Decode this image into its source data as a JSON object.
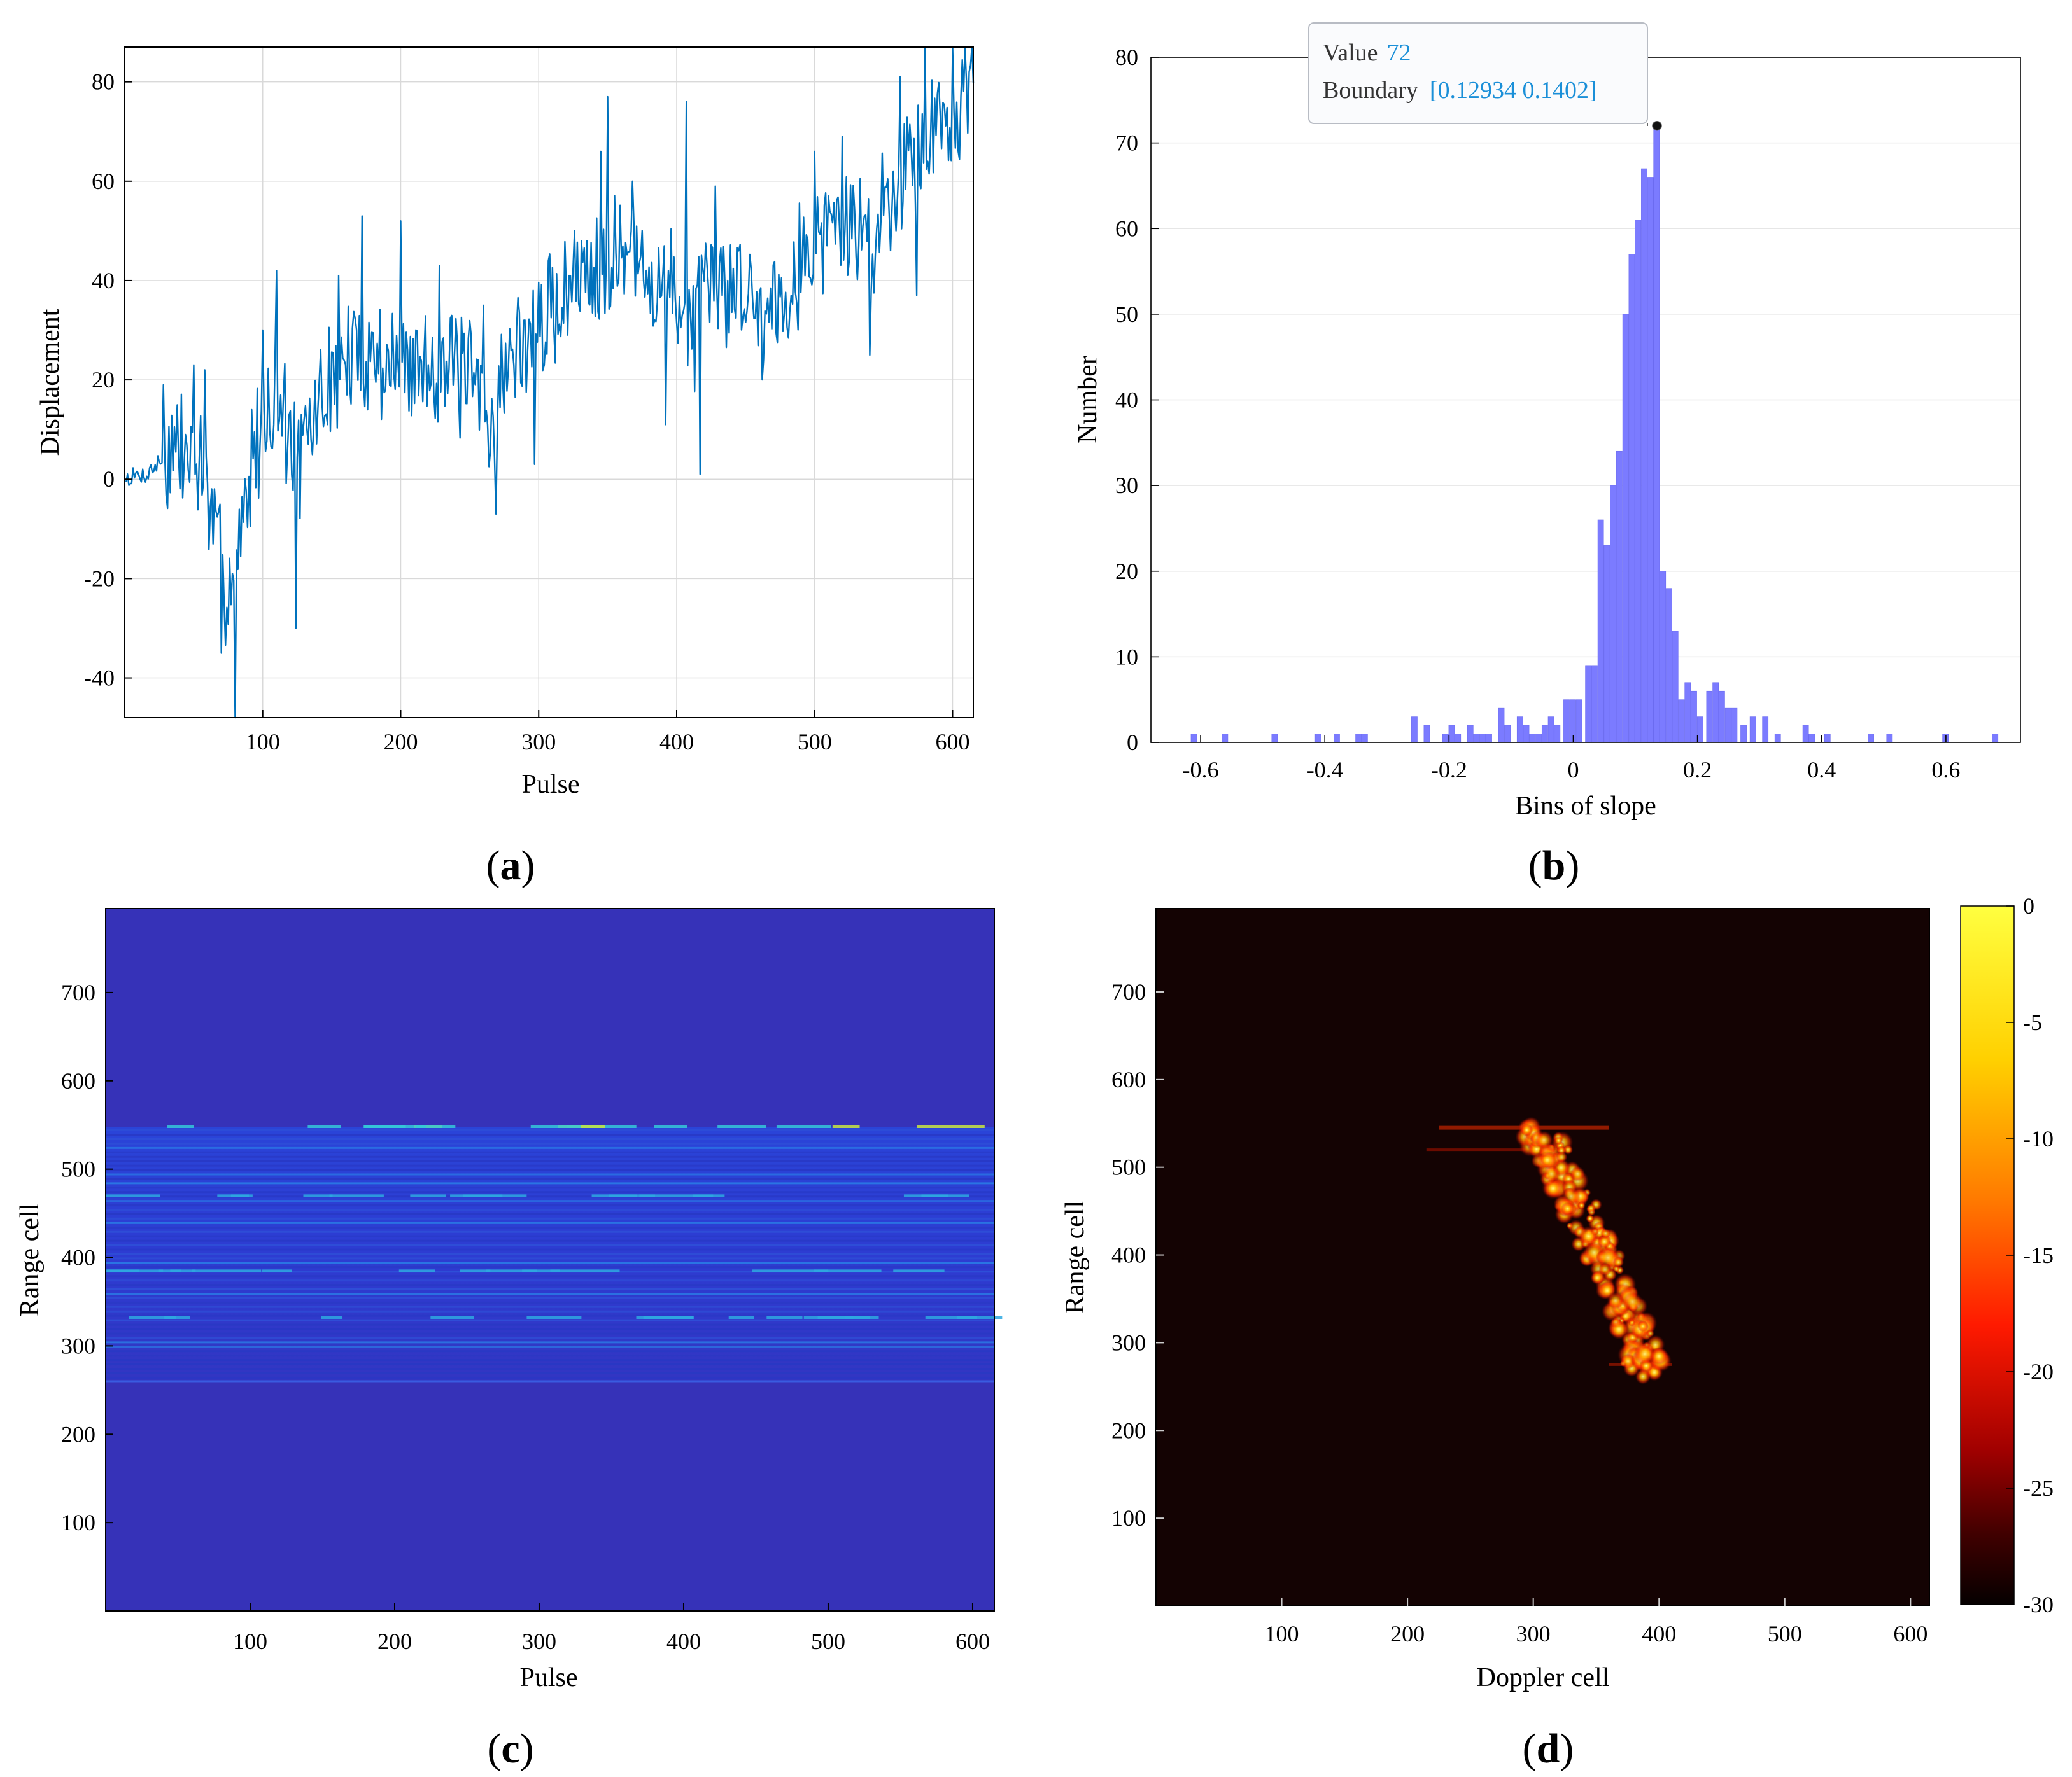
{
  "figure_labels": {
    "a": "a",
    "b": "b",
    "c": "c",
    "d": "d"
  },
  "chart_data": [
    {
      "panel": "a",
      "type": "line",
      "xlabel": "Pulse",
      "ylabel": "Displacement",
      "xlim": [
        0,
        615
      ],
      "ylim": [
        -48,
        87
      ],
      "xticks": [
        100,
        200,
        300,
        400,
        500,
        600
      ],
      "yticks": [
        -40,
        -20,
        0,
        20,
        40,
        60,
        80
      ],
      "grid": true,
      "line_color": "#0072bd",
      "trend_anchors": [
        [
          1,
          0
        ],
        [
          15,
          1
        ],
        [
          28,
          4
        ],
        [
          40,
          6
        ],
        [
          55,
          3
        ],
        [
          65,
          -12
        ],
        [
          72,
          -20
        ],
        [
          80,
          -18
        ],
        [
          88,
          -5
        ],
        [
          100,
          12
        ],
        [
          110,
          18
        ],
        [
          120,
          8
        ],
        [
          128,
          3
        ],
        [
          140,
          15
        ],
        [
          155,
          22
        ],
        [
          175,
          26
        ],
        [
          200,
          22
        ],
        [
          230,
          24
        ],
        [
          255,
          18
        ],
        [
          265,
          12
        ],
        [
          280,
          25
        ],
        [
          300,
          30
        ],
        [
          320,
          38
        ],
        [
          340,
          44
        ],
        [
          360,
          46
        ],
        [
          380,
          40
        ],
        [
          400,
          38
        ],
        [
          410,
          30
        ],
        [
          425,
          38
        ],
        [
          445,
          40
        ],
        [
          460,
          34
        ],
        [
          475,
          38
        ],
        [
          500,
          48
        ],
        [
          520,
          52
        ],
        [
          540,
          48
        ],
        [
          555,
          58
        ],
        [
          570,
          66
        ],
        [
          585,
          70
        ],
        [
          600,
          74
        ],
        [
          612,
          80
        ]
      ],
      "spikes": [
        [
          28,
          19
        ],
        [
          50,
          23
        ],
        [
          58,
          22
        ],
        [
          70,
          -35
        ],
        [
          80,
          -48
        ],
        [
          92,
          14
        ],
        [
          100,
          30
        ],
        [
          110,
          42
        ],
        [
          124,
          -30
        ],
        [
          155,
          41
        ],
        [
          172,
          53
        ],
        [
          200,
          52
        ],
        [
          228,
          43
        ],
        [
          260,
          35
        ],
        [
          269,
          -7
        ],
        [
          297,
          3
        ],
        [
          335,
          48
        ],
        [
          345,
          66
        ],
        [
          350,
          77
        ],
        [
          368,
          60
        ],
        [
          392,
          11
        ],
        [
          407,
          76
        ],
        [
          417,
          1
        ],
        [
          428,
          59
        ],
        [
          462,
          20
        ],
        [
          500,
          66
        ],
        [
          510,
          57
        ],
        [
          520,
          69
        ],
        [
          540,
          25
        ],
        [
          562,
          81
        ],
        [
          574,
          37
        ],
        [
          580,
          87
        ],
        [
          600,
          87
        ],
        [
          612,
          82
        ]
      ]
    },
    {
      "panel": "b",
      "type": "bar",
      "xlabel": "Bins of slope",
      "ylabel": "Number",
      "xlim": [
        -0.68,
        0.72
      ],
      "ylim": [
        0,
        80
      ],
      "xticks": [
        -0.6,
        -0.4,
        -0.2,
        0,
        0.2,
        0.4,
        0.6
      ],
      "yticks": [
        0,
        10,
        20,
        30,
        40,
        50,
        60,
        70,
        80
      ],
      "bin_width": 0.0109,
      "bar_color": "#7b7bff",
      "bins": [
        [
          -0.61,
          1
        ],
        [
          -0.56,
          1
        ],
        [
          -0.48,
          1
        ],
        [
          -0.41,
          1
        ],
        [
          -0.38,
          1
        ],
        [
          -0.345,
          1
        ],
        [
          -0.335,
          1
        ],
        [
          -0.255,
          3
        ],
        [
          -0.235,
          2
        ],
        [
          -0.205,
          1
        ],
        [
          -0.195,
          2
        ],
        [
          -0.185,
          1
        ],
        [
          -0.165,
          2
        ],
        [
          -0.155,
          1
        ],
        [
          -0.145,
          1
        ],
        [
          -0.135,
          1
        ],
        [
          -0.115,
          4
        ],
        [
          -0.105,
          2
        ],
        [
          -0.085,
          3
        ],
        [
          -0.075,
          2
        ],
        [
          -0.065,
          1
        ],
        [
          -0.055,
          1
        ],
        [
          -0.045,
          2
        ],
        [
          -0.035,
          3
        ],
        [
          -0.025,
          2
        ],
        [
          -0.01,
          5
        ],
        [
          0.0,
          5
        ],
        [
          0.01,
          5
        ],
        [
          0.025,
          9
        ],
        [
          0.035,
          9
        ],
        [
          0.045,
          26
        ],
        [
          0.055,
          23
        ],
        [
          0.065,
          30
        ],
        [
          0.075,
          34
        ],
        [
          0.085,
          50
        ],
        [
          0.095,
          57
        ],
        [
          0.105,
          61
        ],
        [
          0.115,
          67
        ],
        [
          0.125,
          66
        ],
        [
          0.1348,
          72
        ],
        [
          0.145,
          20
        ],
        [
          0.155,
          18
        ],
        [
          0.165,
          13
        ],
        [
          0.175,
          5
        ],
        [
          0.185,
          7
        ],
        [
          0.195,
          6
        ],
        [
          0.205,
          3
        ],
        [
          0.22,
          6
        ],
        [
          0.23,
          7
        ],
        [
          0.24,
          6
        ],
        [
          0.25,
          4
        ],
        [
          0.26,
          4
        ],
        [
          0.275,
          2
        ],
        [
          0.29,
          3
        ],
        [
          0.31,
          3
        ],
        [
          0.33,
          1
        ],
        [
          0.375,
          2
        ],
        [
          0.385,
          1
        ],
        [
          0.41,
          1
        ],
        [
          0.48,
          1
        ],
        [
          0.51,
          1
        ],
        [
          0.6,
          1
        ],
        [
          0.68,
          1
        ]
      ],
      "tooltip": {
        "value_label": "Value",
        "value": "72",
        "boundary_label": "Boundary",
        "boundary": "[0.12934 0.1402]",
        "point_x": 0.1348,
        "point_y": 72
      }
    },
    {
      "panel": "c",
      "type": "heatmap",
      "xlabel": "Pulse",
      "ylabel": "Range cell",
      "xlim": [
        0,
        615
      ],
      "ylim": [
        0,
        795
      ],
      "xticks": [
        100,
        200,
        300,
        400,
        500,
        600
      ],
      "yticks": [
        100,
        200,
        300,
        400,
        500,
        600,
        700
      ],
      "background_color": "#3632b8",
      "echo_band": [
        260,
        548
      ],
      "bright_streaks_range_cells": [
        548,
        470,
        385,
        332
      ],
      "colormap": "jet"
    },
    {
      "panel": "d",
      "type": "heatmap",
      "xlabel": "Doppler cell",
      "ylabel": "Range cell",
      "xlim": [
        0,
        615
      ],
      "ylim": [
        0,
        795
      ],
      "xticks": [
        100,
        200,
        300,
        400,
        500,
        600
      ],
      "yticks": [
        100,
        200,
        300,
        400,
        500,
        600,
        700
      ],
      "background_color": "#140303",
      "colormap": "hot",
      "colorbar": {
        "ticks": [
          "0",
          "-5",
          "-10",
          "-15",
          "-20",
          "-25",
          "-30"
        ],
        "tick_values": [
          0,
          -5,
          -10,
          -15,
          -20,
          -25,
          -30
        ],
        "range": [
          -30,
          0
        ]
      },
      "target_track": [
        [
          300,
          545
        ],
        [
          318,
          515
        ],
        [
          330,
          470
        ],
        [
          342,
          430
        ],
        [
          355,
          400
        ],
        [
          365,
          360
        ],
        [
          380,
          320
        ],
        [
          390,
          290
        ],
        [
          385,
          265
        ]
      ]
    }
  ]
}
